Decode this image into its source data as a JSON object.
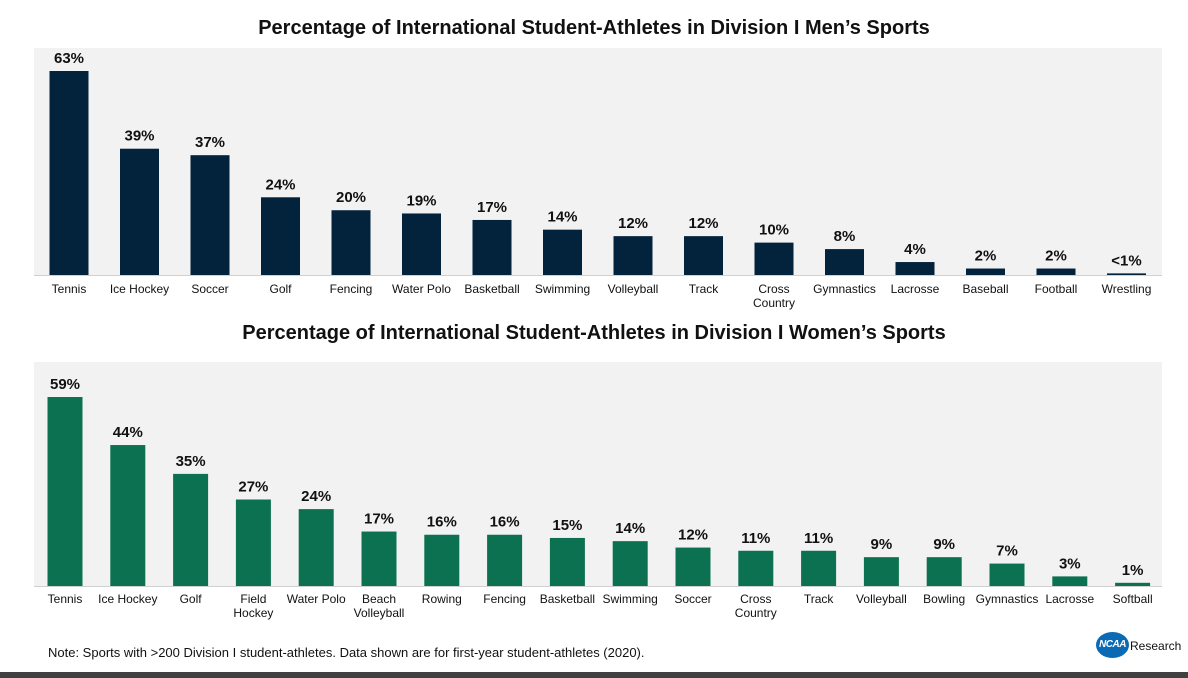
{
  "colors": {
    "men_bar": "#03223c",
    "women_bar": "#0b7150",
    "plot_bg": "#f2f2f2"
  },
  "note": "Note: Sports with >200 Division I student-athletes. Data shown are for first-year student-athletes (2020).",
  "logo": {
    "badge": "NCAA",
    "text": "Research"
  },
  "chart_data": [
    {
      "type": "bar",
      "title": "Percentage of International Student-Athletes in Division I Men’s Sports",
      "categories": [
        "Tennis",
        "Ice Hockey",
        "Soccer",
        "Golf",
        "Fencing",
        "Water Polo",
        "Basketball",
        "Swimming",
        "Volleyball",
        "Track",
        "Cross Country",
        "Gymnastics",
        "Lacrosse",
        "Baseball",
        "Football",
        "Wrestling"
      ],
      "values": [
        63,
        39,
        37,
        24,
        20,
        19,
        17,
        14,
        12,
        12,
        10,
        8,
        4,
        2,
        2,
        0.5
      ],
      "data_labels": [
        "63%",
        "39%",
        "37%",
        "24%",
        "20%",
        "19%",
        "17%",
        "14%",
        "12%",
        "12%",
        "10%",
        "8%",
        "4%",
        "2%",
        "2%",
        "<1%"
      ],
      "ylim": [
        0,
        63
      ],
      "grid": false
    },
    {
      "type": "bar",
      "title": "Percentage of International Student-Athletes in Division I Women’s Sports",
      "categories": [
        "Tennis",
        "Ice Hockey",
        "Golf",
        "Field Hockey",
        "Water Polo",
        "Beach Volleyball",
        "Rowing",
        "Fencing",
        "Basketball",
        "Swimming",
        "Soccer",
        "Cross Country",
        "Track",
        "Volleyball",
        "Bowling",
        "Gymnastics",
        "Lacrosse",
        "Softball"
      ],
      "values": [
        59,
        44,
        35,
        27,
        24,
        17,
        16,
        16,
        15,
        14,
        12,
        11,
        11,
        9,
        9,
        7,
        3,
        1
      ],
      "data_labels": [
        "59%",
        "44%",
        "35%",
        "27%",
        "24%",
        "17%",
        "16%",
        "16%",
        "15%",
        "14%",
        "12%",
        "11%",
        "11%",
        "9%",
        "9%",
        "7%",
        "3%",
        "1%"
      ],
      "ylim": [
        0,
        59
      ],
      "grid": false
    }
  ]
}
